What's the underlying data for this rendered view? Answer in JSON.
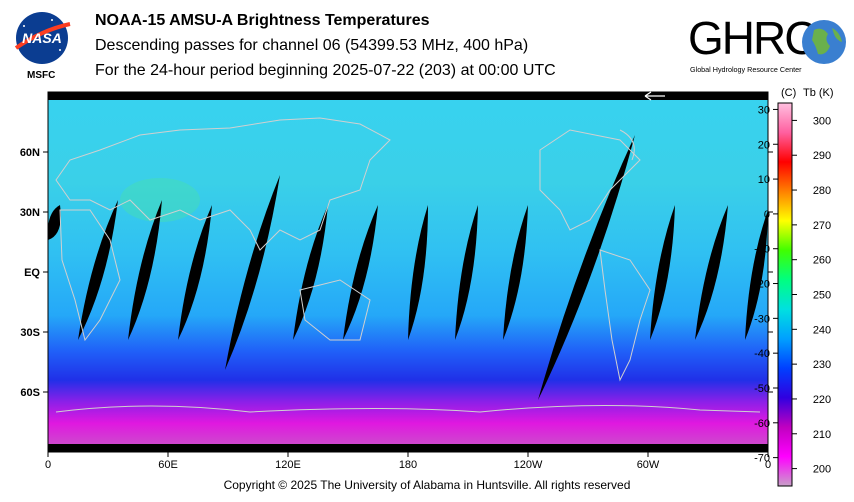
{
  "header": {
    "title": "NOAA-15 AMSU-A Brightness Temperatures",
    "subtitle": "Descending passes for channel 06 (54399.53 MHz, 400 hPa)",
    "period": "For the 24-hour period beginning 2025-07-22 (203) at 00:00 UTC"
  },
  "logos": {
    "nasa": "NASA",
    "nasa_center": "MSFC",
    "ghrc": "GHRC",
    "ghrc_full": "Global Hydrology Resource Center"
  },
  "footer": {
    "copyright": "Copyright © 2025 The University of Alabama in Huntsville.  All rights reserved"
  },
  "colors": {
    "map_fill_top": "#33c8f0",
    "map_fill_mid": "#29b8f5",
    "map_fill_south": "#1f3cf0",
    "map_fill_pole": "#e018e0",
    "swath_gap": "#000000",
    "coastline": "#c8c8c8"
  },
  "chart_data": {
    "type": "heatmap",
    "title": "NOAA-15 AMSU-A Brightness Temperatures",
    "x_ticks": [
      "0",
      "60E",
      "120E",
      "180",
      "120W",
      "60W",
      "0"
    ],
    "y_ticks": [
      "60N",
      "30N",
      "EQ",
      "30S",
      "60S"
    ],
    "colorbar": {
      "header_c": "(C)",
      "header_k": "Tb  (K)",
      "celsius_ticks": [
        "30",
        "20",
        "10",
        "0",
        "-10",
        "-20",
        "-30",
        "-40",
        "-50",
        "-60",
        "-70"
      ],
      "kelvin_ticks": [
        "300",
        "290",
        "280",
        "270",
        "260",
        "250",
        "240",
        "230",
        "220",
        "210",
        "200"
      ],
      "kelvin_range": [
        195,
        305
      ],
      "colors": [
        "#c8a0c8",
        "#ff00ff",
        "#c000c0",
        "#3000e0",
        "#0040ff",
        "#00a0ff",
        "#00e0e0",
        "#00ff80",
        "#40ff00",
        "#ffff00",
        "#ff8000",
        "#ff0000",
        "#ff60a0",
        "#ffc0e0"
      ]
    }
  }
}
